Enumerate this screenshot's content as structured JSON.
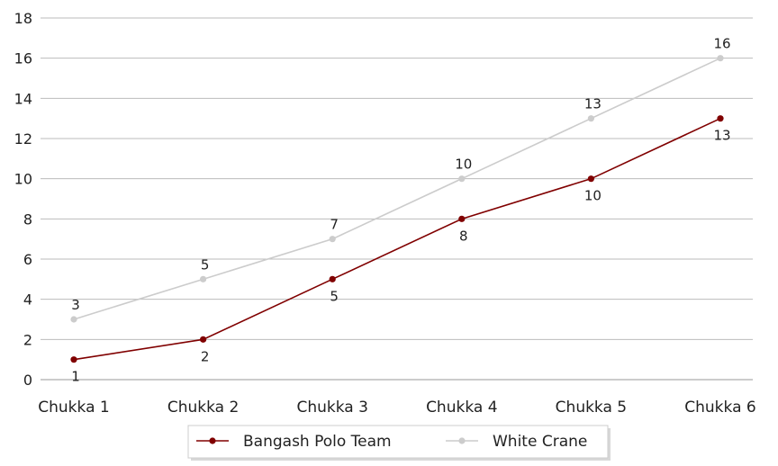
{
  "chart_data": {
    "type": "line",
    "categories": [
      "Chukka 1",
      "Chukka 2",
      "Chukka 3",
      "Chukka 4",
      "Chukka 5",
      "Chukka 6"
    ],
    "series": [
      {
        "name": "Bangash Polo Team",
        "color": "#800000",
        "values": [
          1,
          2,
          5,
          8,
          10,
          13
        ],
        "label_position": "below"
      },
      {
        "name": "White Crane",
        "color": "#cccccc",
        "values": [
          3,
          5,
          7,
          10,
          13,
          16
        ],
        "label_position": "above"
      }
    ],
    "ylim": [
      0,
      18
    ],
    "yticks": [
      0,
      2,
      4,
      6,
      8,
      10,
      12,
      14,
      16,
      18
    ],
    "grid": true,
    "legend_position": "bottom-center"
  }
}
